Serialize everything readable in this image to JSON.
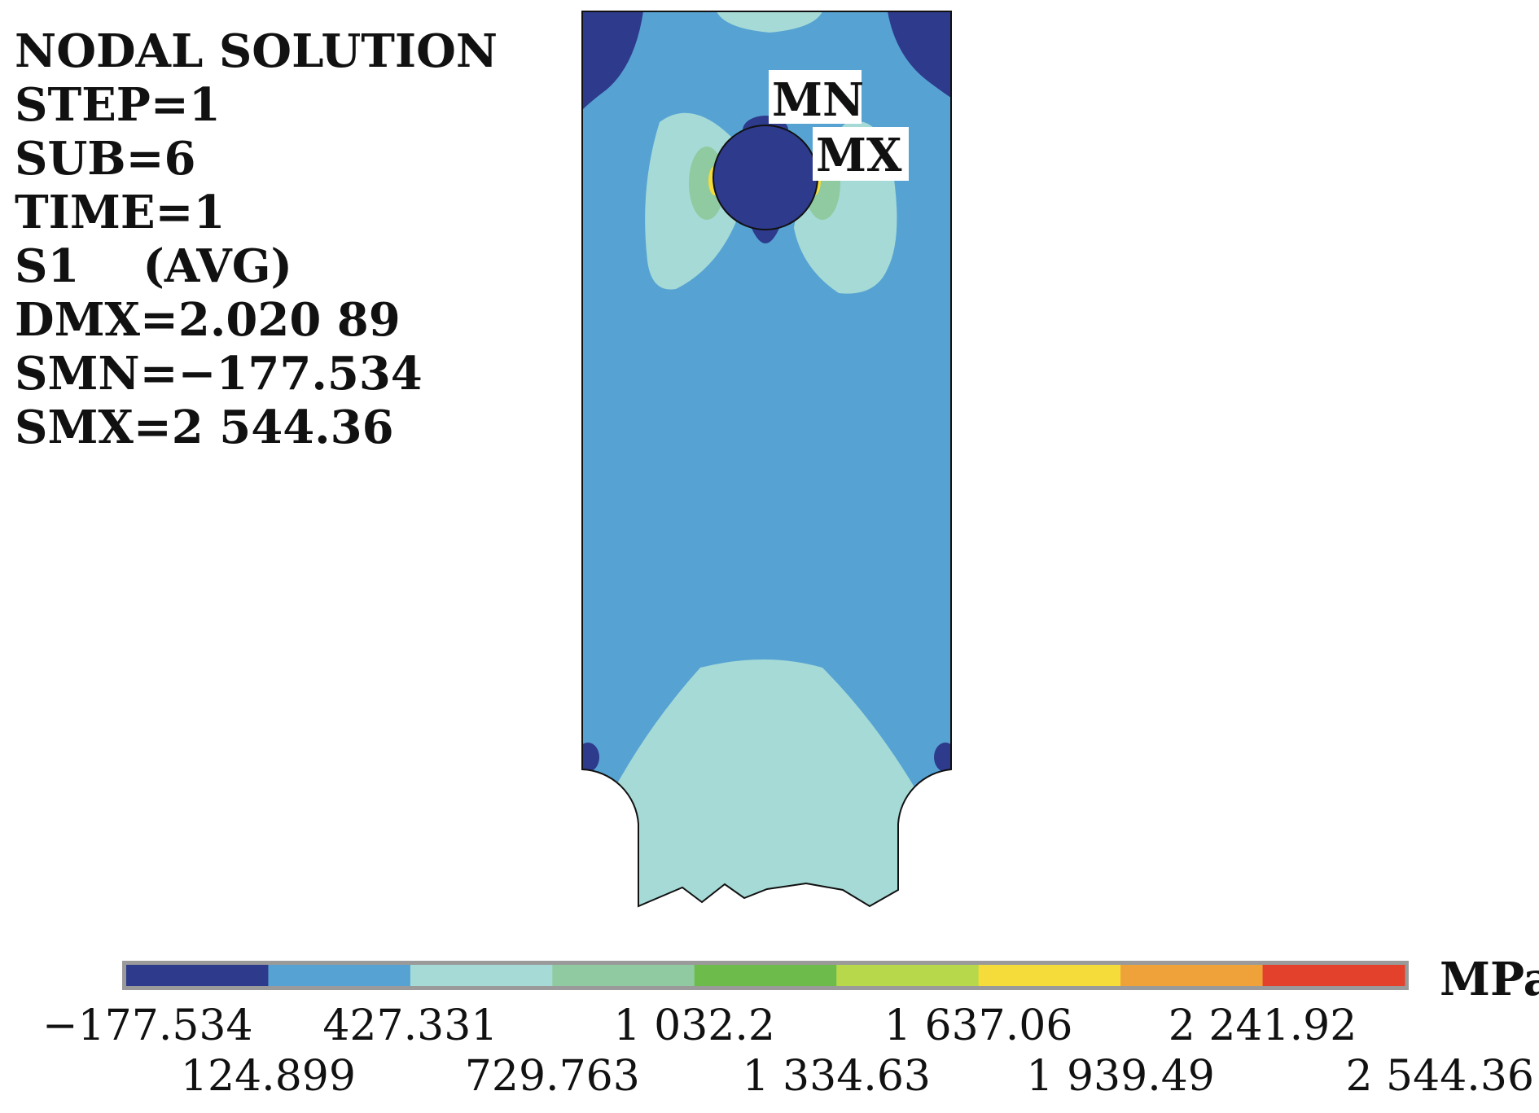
{
  "info": {
    "lines": [
      "NODAL SOLUTION",
      "STEP=1",
      "SUB=6",
      "TIME=1",
      "S1    (AVG)",
      "DMX=2.020 89",
      "SMN=−177.534",
      "SMX=2 544.36"
    ]
  },
  "markers": {
    "min": "MN",
    "max": "MX"
  },
  "legend": {
    "unit": "MPa",
    "colors": [
      "#2e3a8c",
      "#56a3d3",
      "#a6dad6",
      "#8fcaa0",
      "#6dbb4a",
      "#b6d84a",
      "#f6dc3a",
      "#f0a23a",
      "#e4412d"
    ],
    "labels_top": [
      "−177.534",
      "427.331",
      "1 032.2",
      "1 637.06",
      "2 241.92"
    ],
    "labels_bottom": [
      "124.899",
      "729.763",
      "1 334.63",
      "1 939.49",
      "2 544.36"
    ]
  },
  "model_colors": {
    "outline": "#111111",
    "region_low": "#2e3a8c",
    "region_main": "#56a3d3",
    "region_mid": "#a6dad6",
    "region_green": "#8fcaa0",
    "region_yellow": "#f6dc3a"
  }
}
